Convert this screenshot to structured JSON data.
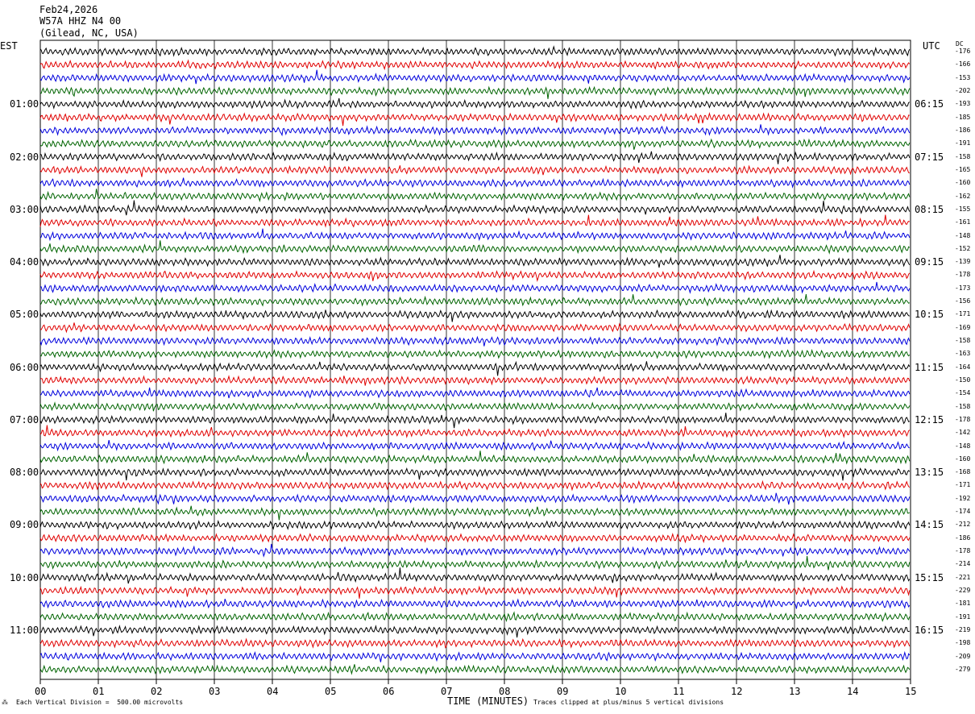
{
  "header": {
    "date": "Feb24,2026",
    "station": "W57A HHZ N4 00",
    "location": "(Gilead, NC, USA)"
  },
  "left_zone": "EST",
  "right_zone": "UTC",
  "dc_label": "DC",
  "footer": {
    "scale": "Each Vertical Division =  500.00 microvolts",
    "xlabel": "TIME (MINUTES)",
    "clip": "Traces clipped at plus/minus 5 vertical divisions"
  },
  "colors": {
    "trace_cycle": [
      "#000000",
      "#e00000",
      "#0000dd",
      "#006400"
    ],
    "grid": "#000000"
  },
  "chart_data": {
    "type": "line",
    "title": "W57A HHZ N4 00",
    "xlabel": "TIME (MINUTES)",
    "xlim": [
      0,
      15
    ],
    "x_ticks": [
      "00",
      "01",
      "02",
      "03",
      "04",
      "05",
      "06",
      "07",
      "08",
      "09",
      "10",
      "11",
      "12",
      "13",
      "14",
      "15"
    ],
    "rows_per_hour": 4,
    "row_count": 48,
    "left_hour_labels": [
      "01:00",
      "02:00",
      "03:00",
      "04:00",
      "05:00",
      "06:00",
      "07:00",
      "08:00",
      "09:00",
      "10:00",
      "11:00"
    ],
    "right_hour_labels": [
      "06:15",
      "07:15",
      "08:15",
      "09:15",
      "10:15",
      "11:15",
      "12:15",
      "13:15",
      "14:15",
      "15:15",
      "16:15"
    ],
    "dc_offsets": [
      -176,
      -166,
      -153,
      -202,
      -193,
      -185,
      -186,
      -191,
      -158,
      -165,
      -160,
      -162,
      -155,
      -161,
      -148,
      -152,
      -139,
      -178,
      -173,
      -156,
      -171,
      -169,
      -158,
      -163,
      -164,
      -150,
      -154,
      -158,
      -178,
      -142,
      -148,
      -160,
      -168,
      -171,
      -192,
      -174,
      -212,
      -186,
      -178,
      -214,
      -221,
      -229,
      -181,
      -191,
      -219,
      -198,
      -209,
      -279
    ],
    "grid": true
  }
}
